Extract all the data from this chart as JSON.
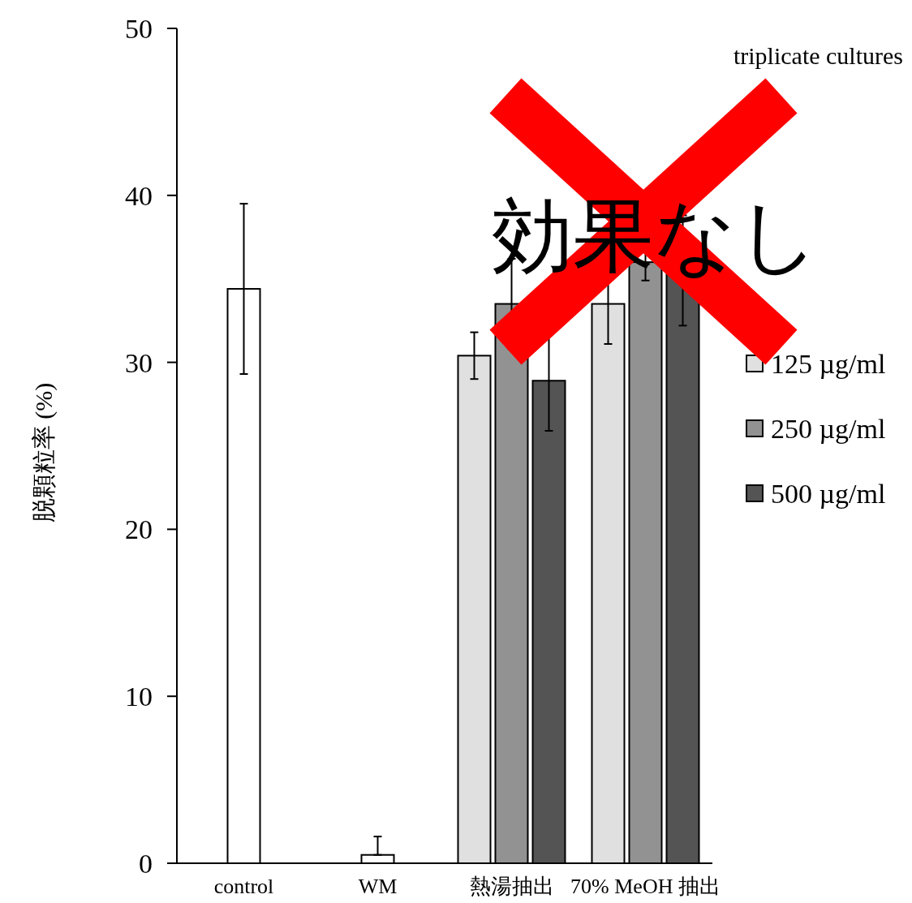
{
  "chart_data": {
    "type": "bar",
    "ylabel": "脱顆粒率 (%)",
    "categories": [
      "control",
      "WM",
      "熱湯抽出",
      "70% MeOH 抽出"
    ],
    "series": [
      {
        "color": "#ffffff",
        "values": [
          34.4,
          0.5,
          null,
          null
        ],
        "errors": [
          5.1,
          [
            0.5,
            1.6
          ],
          null,
          null
        ]
      },
      {
        "name": "125 µg/ml",
        "color": "#e0e0e0",
        "values": [
          null,
          null,
          30.4,
          33.5
        ],
        "errors": [
          null,
          null,
          1.4,
          2.4
        ]
      },
      {
        "name": "250 µg/ml",
        "color": "#929292",
        "values": [
          null,
          null,
          33.5,
          36.0
        ],
        "errors": [
          null,
          null,
          2.7,
          1.1
        ]
      },
      {
        "name": "500 µg/ml",
        "color": "#545454",
        "values": [
          null,
          null,
          28.9,
          35.5
        ],
        "errors": [
          null,
          null,
          3.0,
          3.3
        ]
      }
    ],
    "ylim": [
      0,
      50
    ],
    "yticks": [
      0,
      10,
      20,
      30,
      40,
      50
    ],
    "grid": false,
    "legend": "right",
    "annotations": [
      "triplicate cultures",
      "効果なし"
    ]
  }
}
